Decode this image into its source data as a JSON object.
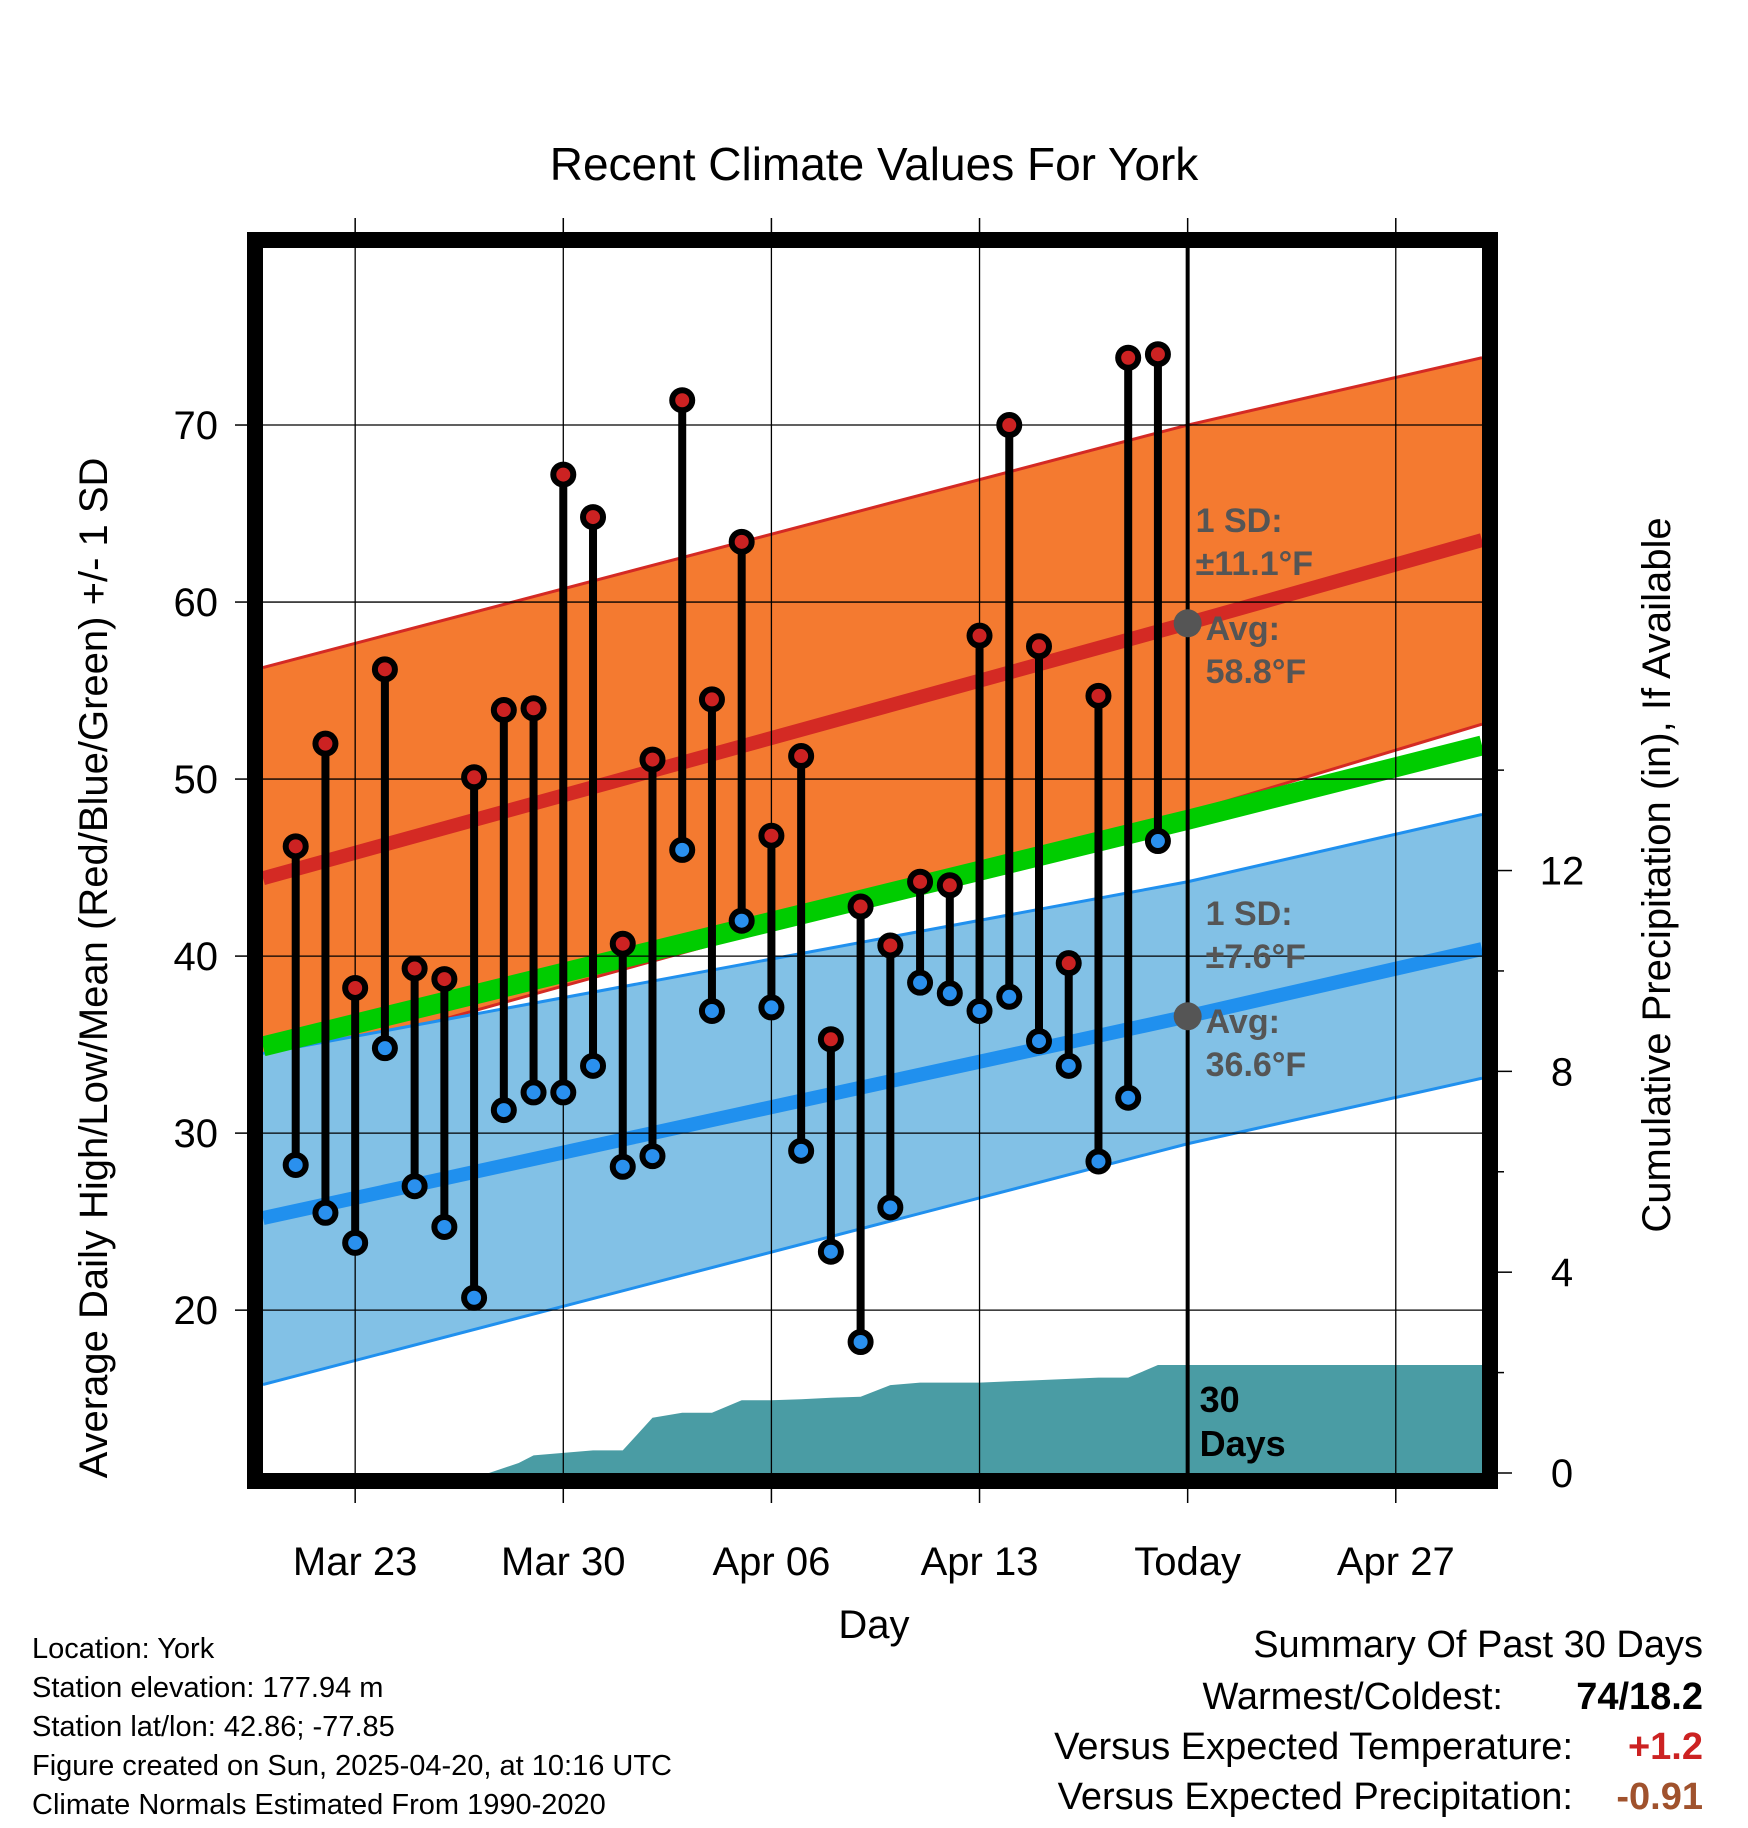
{
  "title": "Recent Climate Values For York",
  "xlabel": "Day",
  "ylabel_left": "Average Daily High/Low/Mean (Red/Blue/Green) +/- 1 SD",
  "ylabel_right": "Cumulative Precipitation (in), If Available",
  "annotations": {
    "high_sd_label": "1 SD:",
    "high_sd_value": "±11.1°F",
    "high_avg_label": "Avg:",
    "high_avg_value": "58.8°F",
    "low_sd_label": "1 SD:",
    "low_sd_value": "±7.6°F",
    "low_avg_label": "Avg:",
    "low_avg_value": "36.6°F",
    "days_label_1": "30",
    "days_label_2": "Days"
  },
  "info": {
    "location": "Location: York",
    "elevation": "Station elevation: 177.94 m",
    "latlon": "Station lat/lon: 42.86; -77.85",
    "created": "Figure created on Sun, 2025-04-20, at 10:16 UTC",
    "normals": "Climate Normals Estimated From 1990-2020"
  },
  "summary": {
    "heading": "Summary Of Past 30 Days",
    "warmest_coldest_label": "Warmest/Coldest:",
    "warmest_coldest_value": "74/18.2",
    "temp_label": "Versus Expected Temperature:",
    "temp_value": "+1.2",
    "precip_label": "Versus Expected Precipitation:",
    "precip_value": "-0.91"
  },
  "colors": {
    "high_band": "#f47a30",
    "high_line": "#d42a24",
    "low_band": "#82c1e6",
    "low_line": "#2090ee",
    "mean_line": "#00cc00",
    "precip": "#4a9ca4",
    "high_dot": "#cc2222",
    "low_dot": "#2a90ee",
    "avg_dot": "#555555",
    "annotation": "#555555",
    "temp_value": "#cc2222",
    "precip_value": "#a0522d"
  },
  "chart_data": {
    "type": "line",
    "x_tick_labels": [
      "Mar 23",
      "Mar 30",
      "Apr 06",
      "Apr 13",
      "Today",
      "Apr 27"
    ],
    "x_tick_days": [
      3,
      10,
      17,
      24,
      31,
      38
    ],
    "xlim": [
      -0.1,
      40.9
    ],
    "ylim_left": [
      10.8,
      80
    ],
    "yticks_left": [
      20,
      30,
      40,
      50,
      60,
      70
    ],
    "ylim_right": [
      0,
      24.4
    ],
    "yticks_right": [
      0,
      4,
      8,
      12
    ],
    "today_day": 31,
    "daily_obs": [
      {
        "day": 1,
        "high": 46.2,
        "low": 28.2
      },
      {
        "day": 2,
        "high": 52.0,
        "low": 25.5
      },
      {
        "day": 3,
        "high": 38.2,
        "low": 23.8
      },
      {
        "day": 4,
        "high": 56.2,
        "low": 34.8
      },
      {
        "day": 5,
        "high": 39.3,
        "low": 27.0
      },
      {
        "day": 6,
        "high": 38.7,
        "low": 24.7
      },
      {
        "day": 7,
        "high": 50.1,
        "low": 20.7
      },
      {
        "day": 8,
        "high": 53.9,
        "low": 31.3
      },
      {
        "day": 9,
        "high": 54.0,
        "low": 32.3
      },
      {
        "day": 10,
        "high": 67.2,
        "low": 32.3
      },
      {
        "day": 11,
        "high": 64.8,
        "low": 33.8
      },
      {
        "day": 12,
        "high": 40.7,
        "low": 28.1
      },
      {
        "day": 13,
        "high": 51.1,
        "low": 28.7
      },
      {
        "day": 14,
        "high": 71.4,
        "low": 46.0
      },
      {
        "day": 15,
        "high": 54.5,
        "low": 36.9
      },
      {
        "day": 16,
        "high": 63.4,
        "low": 42.0
      },
      {
        "day": 17,
        "high": 46.8,
        "low": 37.1
      },
      {
        "day": 18,
        "high": 51.3,
        "low": 29.0
      },
      {
        "day": 19,
        "high": 35.3,
        "low": 23.3
      },
      {
        "day": 20,
        "high": 42.8,
        "low": 18.2
      },
      {
        "day": 21,
        "high": 40.6,
        "low": 25.8
      },
      {
        "day": 22,
        "high": 44.2,
        "low": 38.5
      },
      {
        "day": 23,
        "high": 44.0,
        "low": 37.9
      },
      {
        "day": 24,
        "high": 58.1,
        "low": 36.9
      },
      {
        "day": 25,
        "high": 70.0,
        "low": 37.7
      },
      {
        "day": 26,
        "high": 57.5,
        "low": 35.2
      },
      {
        "day": 27,
        "high": 39.6,
        "low": 33.8
      },
      {
        "day": 28,
        "high": 54.7,
        "low": 28.4
      },
      {
        "day": 29,
        "high": 73.8,
        "low": 32.0
      },
      {
        "day": 30,
        "high": 74.0,
        "low": 46.5
      }
    ],
    "normal_high": {
      "x": [
        -0.1,
        31,
        40.9
      ],
      "y": [
        44.4,
        58.8,
        63.5
      ]
    },
    "normal_high_sd_upper": {
      "x": [
        -0.1,
        31,
        40.9
      ],
      "y": [
        56.3,
        70.0,
        73.8
      ]
    },
    "normal_high_sd_lower": {
      "x": [
        -0.1,
        31,
        40.9
      ],
      "y": [
        33.6,
        48.1,
        53.1
      ]
    },
    "normal_low": {
      "x": [
        -0.1,
        31,
        40.9
      ],
      "y": [
        25.2,
        36.6,
        40.4
      ]
    },
    "normal_low_sd_upper": {
      "x": [
        -0.1,
        31,
        40.9
      ],
      "y": [
        34.5,
        44.2,
        48.0
      ]
    },
    "normal_low_sd_lower": {
      "x": [
        -0.1,
        31,
        40.9
      ],
      "y": [
        15.8,
        29.4,
        33.1
      ]
    },
    "normal_mean": {
      "x": [
        -0.1,
        31,
        40.9
      ],
      "y": [
        34.9,
        47.7,
        51.9
      ]
    },
    "precip_cumulative": {
      "x": [
        -0.1,
        7.5,
        8.5,
        9,
        10,
        11,
        12,
        13,
        14,
        15,
        16,
        17,
        18,
        19,
        20,
        21,
        22,
        24,
        28,
        29,
        30,
        40.9
      ],
      "y": [
        0,
        0,
        0.2,
        0.35,
        0.4,
        0.45,
        0.45,
        1.1,
        1.2,
        1.2,
        1.45,
        1.45,
        1.47,
        1.5,
        1.52,
        1.75,
        1.8,
        1.8,
        1.9,
        1.9,
        2.15,
        2.15
      ]
    }
  }
}
